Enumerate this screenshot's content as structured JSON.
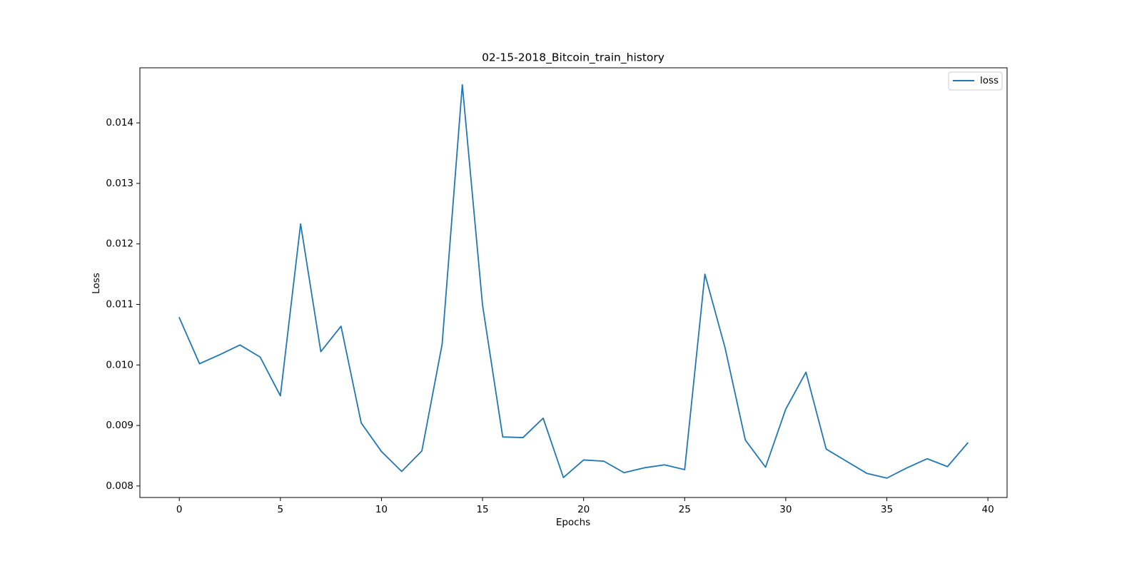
{
  "chart_data": {
    "type": "line",
    "title": "02-15-2018_Bitcoin_train_history",
    "xlabel": "Epochs",
    "ylabel": "Loss",
    "xlim": [
      -1.95,
      40.95
    ],
    "ylim": [
      0.00781,
      0.01491
    ],
    "xticks": [
      0,
      5,
      10,
      15,
      20,
      25,
      30,
      35,
      40
    ],
    "xtick_labels": [
      "0",
      "5",
      "10",
      "15",
      "20",
      "25",
      "30",
      "35",
      "40"
    ],
    "yticks": [
      0.008,
      0.009,
      0.01,
      0.011,
      0.012,
      0.013,
      0.014
    ],
    "ytick_labels": [
      "0.008",
      "0.009",
      "0.010",
      "0.011",
      "0.012",
      "0.013",
      "0.014"
    ],
    "grid": false,
    "legend_position": "upper right",
    "x": [
      0,
      1,
      2,
      3,
      4,
      5,
      6,
      7,
      8,
      9,
      10,
      11,
      12,
      13,
      14,
      15,
      16,
      17,
      18,
      19,
      20,
      21,
      22,
      23,
      24,
      25,
      26,
      27,
      28,
      29,
      30,
      31,
      32,
      33,
      34,
      35,
      36,
      37,
      38,
      39
    ],
    "series": [
      {
        "name": "loss",
        "color": "#1f77b4",
        "values": [
          0.01078,
          0.01002,
          0.01017,
          0.01033,
          0.01013,
          0.00949,
          0.01233,
          0.01022,
          0.01064,
          0.00904,
          0.00857,
          0.00824,
          0.00858,
          0.01034,
          0.01463,
          0.01099,
          0.00881,
          0.0088,
          0.00912,
          0.00814,
          0.00843,
          0.00841,
          0.00822,
          0.0083,
          0.00835,
          0.00827,
          0.0115,
          0.01028,
          0.00876,
          0.00831,
          0.00927,
          0.00988,
          0.00861,
          0.00841,
          0.00821,
          0.00813,
          0.0083,
          0.00845,
          0.00832,
          0.00871
        ]
      }
    ]
  }
}
